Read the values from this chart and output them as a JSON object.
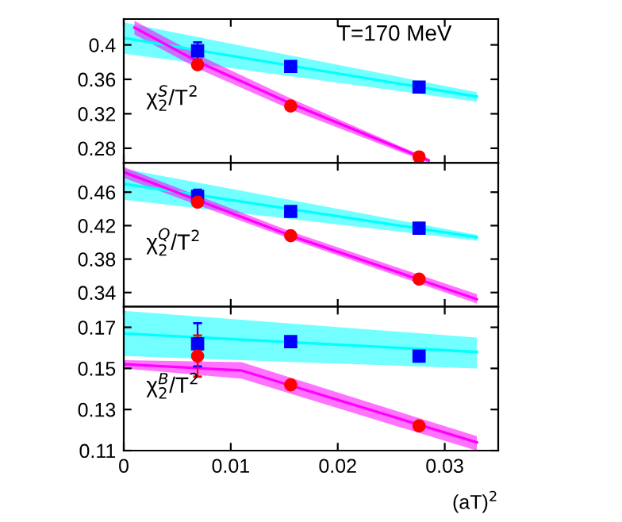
{
  "chart_data": [
    {
      "type": "scatter",
      "ylabel": "χ$^{S}$$_{2}$/T$^{2}$",
      "annotations": [
        "T=170 MeV"
      ],
      "xlim": [
        0,
        0.035
      ],
      "xticks": [
        0,
        0.01,
        0.02,
        0.03
      ],
      "ylim": [
        0.263,
        0.43
      ],
      "yticks": [
        0.28,
        0.32,
        0.36,
        0.4
      ],
      "tick_labels": "y",
      "grid": false,
      "legend": false,
      "series": [
        {
          "type": "line",
          "color": "#00ffff",
          "x": [
            0,
            0.033
          ],
          "lower": [
            0.39,
            0.334
          ],
          "upper": [
            0.426,
            0.345
          ],
          "values": [
            0.408,
            0.34
          ]
        },
        {
          "type": "line",
          "color": "#ff00ff",
          "x": [
            0.001,
            0.007,
            0.0156,
            0.0285
          ],
          "lower": [
            0.412,
            0.372,
            0.325,
            0.263
          ],
          "upper": [
            0.428,
            0.388,
            0.338,
            0.268
          ],
          "values": [
            0.42,
            0.38,
            0.332,
            0.266
          ]
        },
        {
          "marker": "square",
          "color": "#0000ff",
          "x": [
            0.0069,
            0.0156,
            0.0276
          ],
          "values": [
            0.393,
            0.375,
            0.351
          ],
          "errors": [
            0.01,
            null,
            null
          ]
        },
        {
          "marker": "circle",
          "color": "#ff0000",
          "x": [
            0.0069,
            0.0156,
            0.0276
          ],
          "values": [
            0.377,
            0.329,
            0.27
          ]
        }
      ]
    },
    {
      "type": "scatter",
      "ylabel": "χ$^{Q}$$_{2}$/T$^{2}$",
      "xlim": [
        0,
        0.035
      ],
      "xticks": [
        0,
        0.01,
        0.02,
        0.03
      ],
      "ylim": [
        0.323,
        0.495
      ],
      "yticks": [
        0.34,
        0.38,
        0.42,
        0.46
      ],
      "tick_labels": "y",
      "grid": false,
      "legend": false,
      "series": [
        {
          "type": "line",
          "color": "#00ffff",
          "x": [
            0,
            0.033
          ],
          "lower": [
            0.451,
            0.402
          ],
          "upper": [
            0.488,
            0.409
          ],
          "values": [
            0.47,
            0.406
          ]
        },
        {
          "type": "line",
          "color": "#ff00ff",
          "x": [
            0,
            0.0156,
            0.033
          ],
          "lower": [
            0.477,
            0.404,
            0.327
          ],
          "upper": [
            0.49,
            0.413,
            0.338
          ],
          "values": [
            0.484,
            0.408,
            0.332
          ]
        },
        {
          "marker": "square",
          "color": "#0000ff",
          "x": [
            0.0069,
            0.0156,
            0.0276
          ],
          "values": [
            0.455,
            0.437,
            0.417
          ],
          "errors": [
            0.008,
            null,
            null
          ]
        },
        {
          "marker": "circle",
          "color": "#ff0000",
          "x": [
            0.0069,
            0.0156,
            0.0276
          ],
          "values": [
            0.448,
            0.408,
            0.356
          ]
        }
      ]
    },
    {
      "type": "scatter",
      "ylabel": "χ$^{B}$$_{2}$/T$^{2}$",
      "xlabel": "(aT)$^{2}$",
      "xlim": [
        0,
        0.035
      ],
      "xticks": [
        0,
        0.01,
        0.02,
        0.03
      ],
      "ylim": [
        0.11,
        0.18
      ],
      "yticks": [
        0.11,
        0.13,
        0.15,
        0.17
      ],
      "grid": false,
      "legend": false,
      "series": [
        {
          "type": "line",
          "color": "#00ffff",
          "x": [
            0,
            0.033
          ],
          "lower": [
            0.156,
            0.15
          ],
          "upper": [
            0.178,
            0.165
          ],
          "values": [
            0.167,
            0.158
          ]
        },
        {
          "type": "line",
          "color": "#ff00ff",
          "x": [
            0,
            0.011,
            0.033
          ],
          "lower": [
            0.15,
            0.145,
            0.11
          ],
          "upper": [
            0.154,
            0.153,
            0.117
          ],
          "values": [
            0.152,
            0.149,
            0.114
          ]
        },
        {
          "marker": "square",
          "color": "#0000ff",
          "x": [
            0.0069,
            0.0156,
            0.0276
          ],
          "values": [
            0.162,
            0.163,
            0.156
          ],
          "errors": [
            [
              0.151,
              0.172
            ],
            null,
            null
          ]
        },
        {
          "marker": "circle",
          "color": "#ff0000",
          "x": [
            0.0069,
            0.0156,
            0.0276
          ],
          "values": [
            0.156,
            0.142,
            0.122
          ],
          "errors": [
            [
              0.146,
              0.166
            ],
            null,
            null
          ]
        }
      ]
    }
  ]
}
